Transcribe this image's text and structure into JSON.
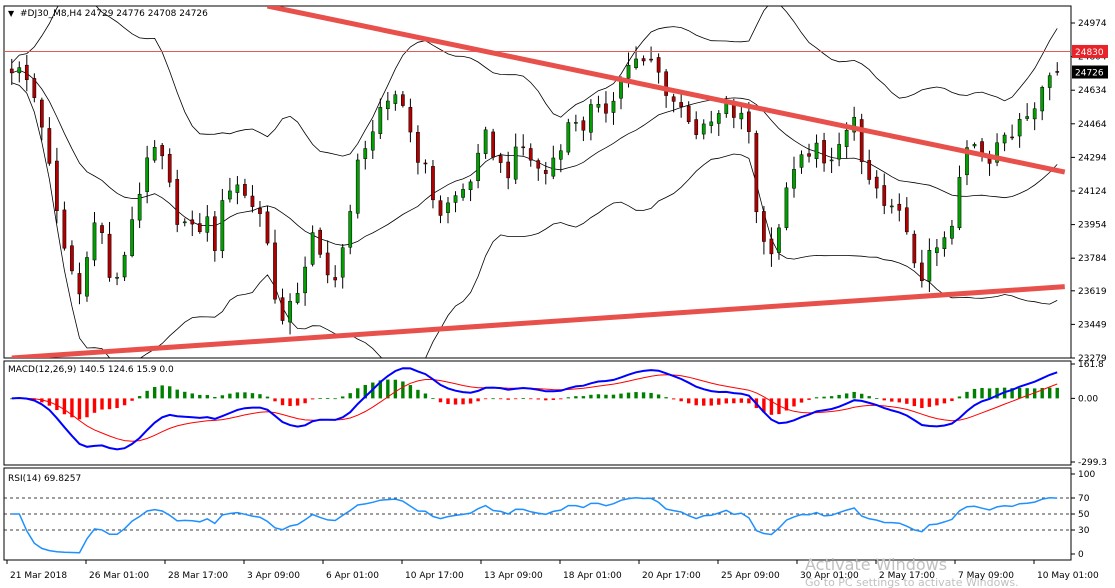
{
  "colors": {
    "background": "#ffffff",
    "frame": "#000000",
    "candle": "#000000",
    "bull_body": "#00a000",
    "bear_body": "#b00000",
    "bands": "#000000",
    "trendline": "#e8504c",
    "resistance": "#e15a5a",
    "price_label_red": "#e8242a",
    "price_label_black": "#000000",
    "macd_pos": "#008000",
    "macd_neg": "#ff0000",
    "macd_line": "#0000ff",
    "signal_line": "#ff0000",
    "rsi_line": "#1e90ff",
    "level_dash": "#000000",
    "watermark": "#c0c0c0"
  },
  "header": {
    "arrow": "▼",
    "title": "#DJ30_M8,H4  24729 24776 24708 24726"
  },
  "price_labels": {
    "resistance": "24830",
    "current": "24726"
  },
  "main_panel": {
    "y_ticks": [
      "24974",
      "24804",
      "24634",
      "24464",
      "24294",
      "24124",
      "23954",
      "23784",
      "23619",
      "23449",
      "23279"
    ]
  },
  "macd_panel": {
    "title": "MACD(12,26,9) 140.5 124.6 15.9 0.0",
    "y_ticks": [
      "161.8",
      "0.00",
      "-299.3"
    ]
  },
  "rsi_panel": {
    "title": "RSI(14) 69.8257",
    "y_ticks": [
      "100",
      "70",
      "50",
      "30",
      "0"
    ]
  },
  "x_axis": {
    "labels": [
      "21 Mar 2018",
      "26 Mar 01:00",
      "28 Mar 17:00",
      "3 Apr 09:00",
      "6 Apr 01:00",
      "10 Apr 17:00",
      "13 Apr 09:00",
      "18 Apr 01:00",
      "20 Apr 17:00",
      "25 Apr 09:00",
      "30 Apr 01:00",
      "2 May 17:00",
      "7 May 09:00",
      "10 May 01:00"
    ]
  },
  "watermark": {
    "line1": "Activate Windows",
    "line2": "Go to PC settings to activate Windows."
  },
  "chart_data": {
    "type": "candlestick",
    "symbol": "#DJ30_M8",
    "timeframe": "H4",
    "last_bar": {
      "open": 24729,
      "high": 24776,
      "low": 24708,
      "close": 24726
    },
    "ylim": [
      23279,
      25060
    ],
    "resistance_level": 24830,
    "closes": [
      24750,
      24720,
      24650,
      24500,
      24200,
      23900,
      23750,
      23600,
      23900,
      24000,
      23700,
      23650,
      23900,
      24100,
      24250,
      24350,
      24200,
      24000,
      23950,
      23900,
      24000,
      23850,
      24100,
      24200,
      24100,
      24050,
      24000,
      23650,
      23450,
      23550,
      23700,
      23900,
      23750,
      23650,
      23800,
      24000,
      24350,
      24400,
      24500,
      24550,
      24650,
      24450,
      24300,
      24200,
      24000,
      24050,
      24100,
      24150,
      24250,
      24400,
      24300,
      24200,
      24300,
      24350,
      24250,
      24200,
      24300,
      24400,
      24500,
      24450,
      24550,
      24500,
      24600,
      24700,
      24800,
      24750,
      24780,
      24700,
      24600,
      24550,
      24500,
      24400,
      24450,
      24500,
      24550,
      24480,
      24500,
      24000,
      23800,
      23900,
      24100,
      24300,
      24250,
      24350,
      24300,
      24250,
      24400,
      24500,
      24200,
      24150,
      24000,
      24100,
      23950,
      23800,
      23700,
      23800,
      23850,
      23900,
      24200,
      24400,
      24350,
      24300,
      24400,
      24350,
      24500,
      24550,
      24600,
      24700,
      24726
    ],
    "bollinger": {
      "period": 20
    },
    "trendlines": [
      {
        "name": "descending",
        "from": {
          "bar": 34,
          "price": 25060
        },
        "to": {
          "bar": 140,
          "price": 24220
        }
      },
      {
        "name": "ascending",
        "from": {
          "bar": 0,
          "price": 23279
        },
        "to": {
          "bar": 140,
          "price": 23640
        }
      }
    ],
    "macd": {
      "fast": 12,
      "slow": 26,
      "signal": 9,
      "values": [
        140.5,
        124.6,
        15.9,
        0.0
      ],
      "ylim": [
        -299.3,
        161.8
      ]
    },
    "rsi": {
      "period": 14,
      "value": 69.8257,
      "levels": [
        70,
        50,
        30
      ],
      "ylim": [
        0,
        100
      ]
    }
  }
}
